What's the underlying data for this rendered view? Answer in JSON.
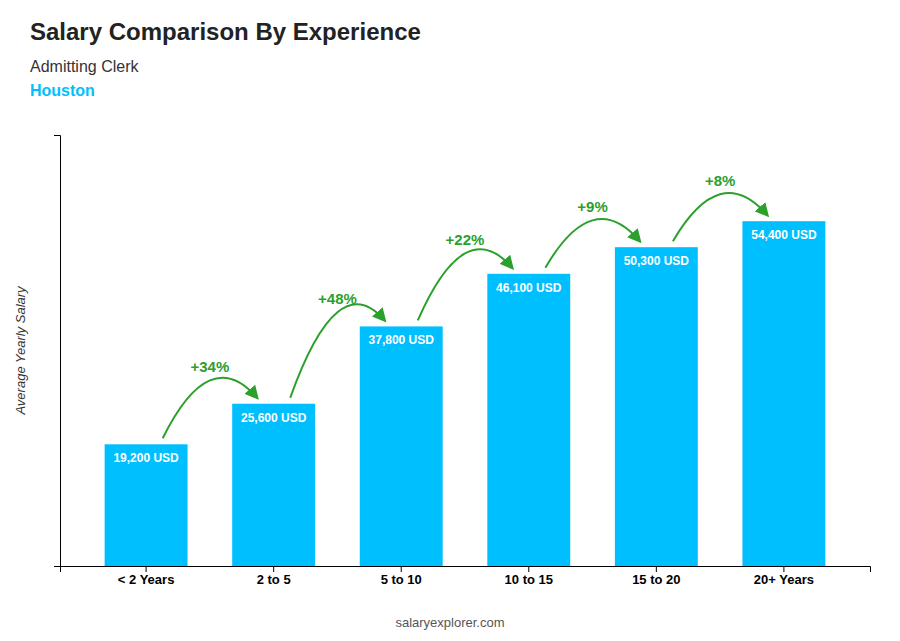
{
  "chart_data": {
    "type": "bar",
    "title": "Salary Comparison By Experience",
    "subtitle": [
      "Admitting Clerk",
      "Houston"
    ],
    "ylabel": "Average Yearly Salary",
    "source": "salaryexplorer.com",
    "categories": [
      "< 2 Years",
      "2 to 5",
      "5 to 10",
      "10 to 15",
      "15 to 20",
      "20+ Years"
    ],
    "values": [
      19200,
      25600,
      37800,
      46100,
      50300,
      54400
    ],
    "value_labels": [
      "19,200 USD",
      "25,600 USD",
      "37,800 USD",
      "46,100 USD",
      "50,300 USD",
      "54,400 USD"
    ],
    "data_labels": true,
    "annotations": [
      "+34%",
      "+48%",
      "+22%",
      "+9%",
      "+8%"
    ],
    "color": "#00BFFF",
    "ylim": [
      0,
      68000
    ],
    "tick_labels": "x",
    "grid": false
  }
}
